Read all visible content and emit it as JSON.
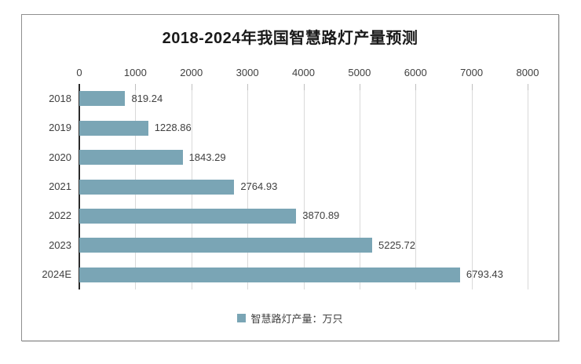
{
  "chart_data": {
    "type": "bar",
    "orientation": "horizontal",
    "title": "2018-2024年我国智慧路灯产量预测",
    "categories": [
      "2018",
      "2019",
      "2020",
      "2021",
      "2022",
      "2023",
      "2024E"
    ],
    "series": [
      {
        "name": "智慧路灯产量：万只",
        "values": [
          819.24,
          1228.86,
          1843.29,
          2764.93,
          3870.89,
          5225.72,
          6793.43
        ],
        "value_labels": [
          "819.24",
          "1228.86",
          "1843.29",
          "2764.93",
          "3870.89",
          "5225.72",
          "6793.43"
        ]
      }
    ],
    "xlim": [
      0,
      8000
    ],
    "x_ticks": [
      0,
      1000,
      2000,
      3000,
      4000,
      5000,
      6000,
      7000,
      8000
    ],
    "x_tick_labels": [
      "0",
      "1000",
      "2000",
      "3000",
      "4000",
      "5000",
      "6000",
      "7000",
      "8000"
    ],
    "grid": true,
    "data_labels_shown": true,
    "legend": {
      "label": "智慧路灯产量：万只",
      "position": "bottom",
      "marker": "square"
    },
    "colors": {
      "bar": "#7AA5B5",
      "legend_marker": "#7AA5B5",
      "gridline": "#D9D9D9",
      "axis_line": "#2B2B2B",
      "border": "#8F8F8F",
      "title_text": "#1A1A1A",
      "label_text": "#404040"
    }
  }
}
